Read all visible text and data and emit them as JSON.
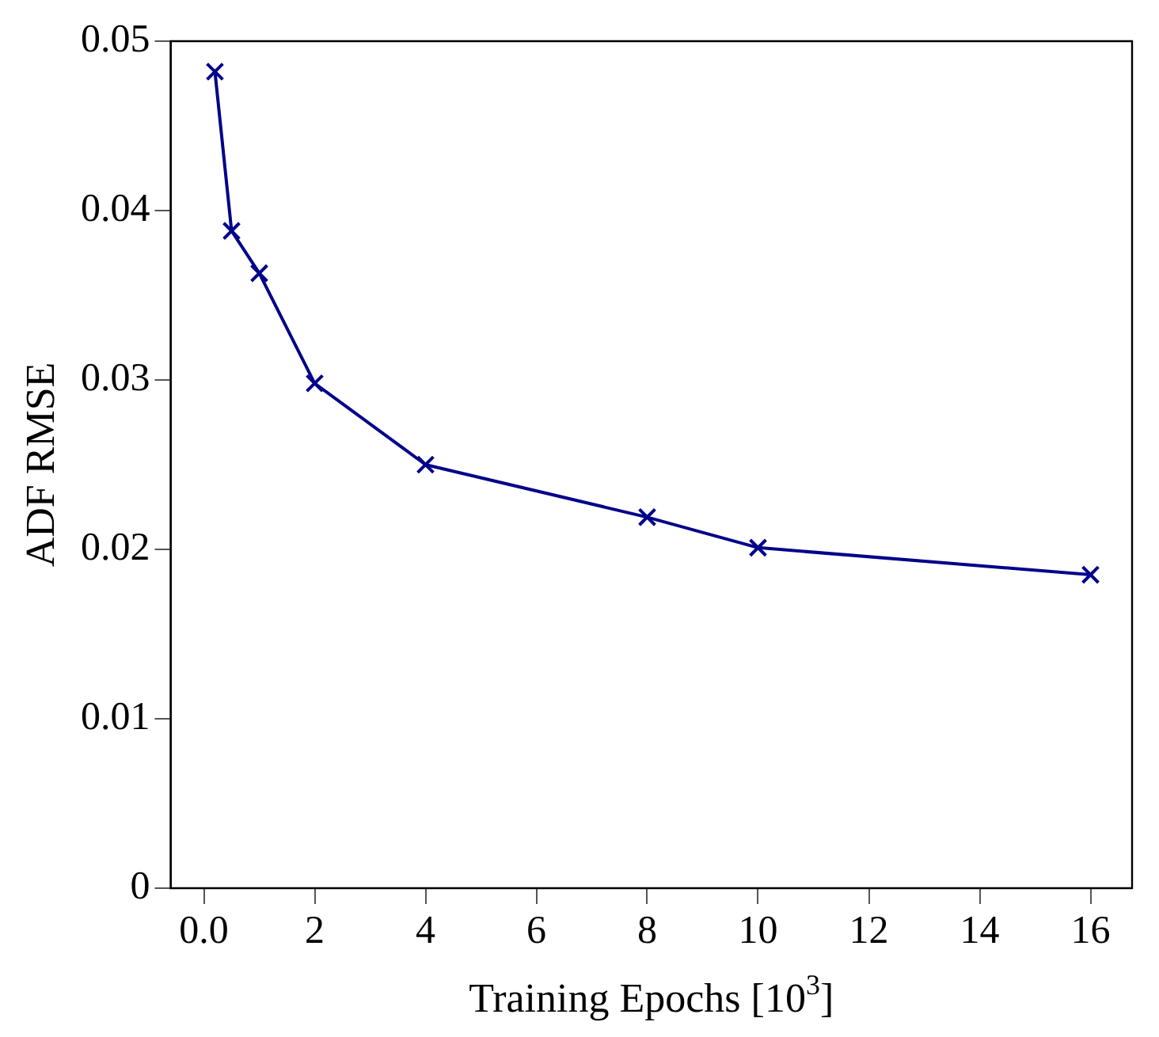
{
  "chart_data": {
    "type": "line",
    "xlabel": "Training Epochs [10$^{3}$]",
    "ylabel": "ADF RMSE",
    "x": [
      0.2,
      0.5,
      1,
      2,
      4,
      8,
      10,
      16
    ],
    "series": [
      {
        "color": "#00008b",
        "values": [
          0.0482,
          0.0388,
          0.0363,
          0.0298,
          0.025,
          0.0219,
          0.0201,
          0.0185
        ]
      }
    ],
    "xlim": [
      -0.6,
      16.75
    ],
    "xticks": [
      {
        "value": 0,
        "label": "0.0"
      },
      2,
      4,
      6,
      8,
      10,
      12,
      14,
      16
    ],
    "ylim": [
      0,
      0.05
    ],
    "yticks": [
      0,
      0.01,
      0.02,
      0.03,
      0.04,
      0.05
    ],
    "grid": false,
    "legend": false,
    "marker": "cross",
    "line_style": "solid"
  }
}
